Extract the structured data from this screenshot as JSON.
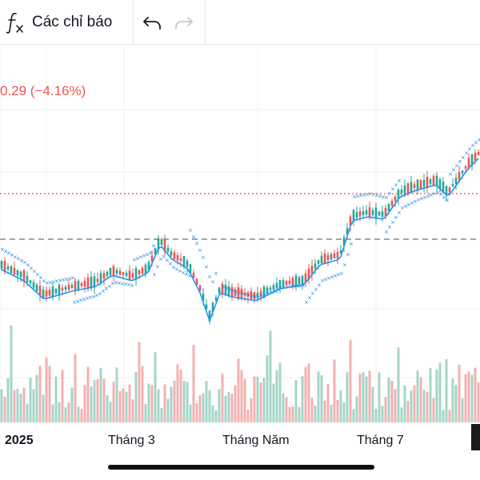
{
  "toolbar": {
    "indicators_label": "Các chỉ báo",
    "icons": [
      "function-fx-icon",
      "undo-icon",
      "redo-icon"
    ]
  },
  "chart": {
    "change_text": "0.29 (−4.16%)",
    "x_labels": [
      "2025",
      "Tháng 3",
      "Tháng Năm",
      "Tháng 7"
    ],
    "colors": {
      "up": "#26a69a",
      "down": "#ef5350",
      "vol_up": "#a5d6c8",
      "vol_down": "#f4b0b0",
      "ma": "#2196f3",
      "sar": "#1e88e5"
    }
  },
  "chart_data": {
    "type": "candlestick",
    "x_labels": [
      "2025",
      "Tháng 3",
      "Tháng Năm",
      "Tháng 7"
    ],
    "overlays": [
      "moving-average",
      "parabolic-sar",
      "volume"
    ],
    "last_change": "0.29 (−4.16%)"
  }
}
